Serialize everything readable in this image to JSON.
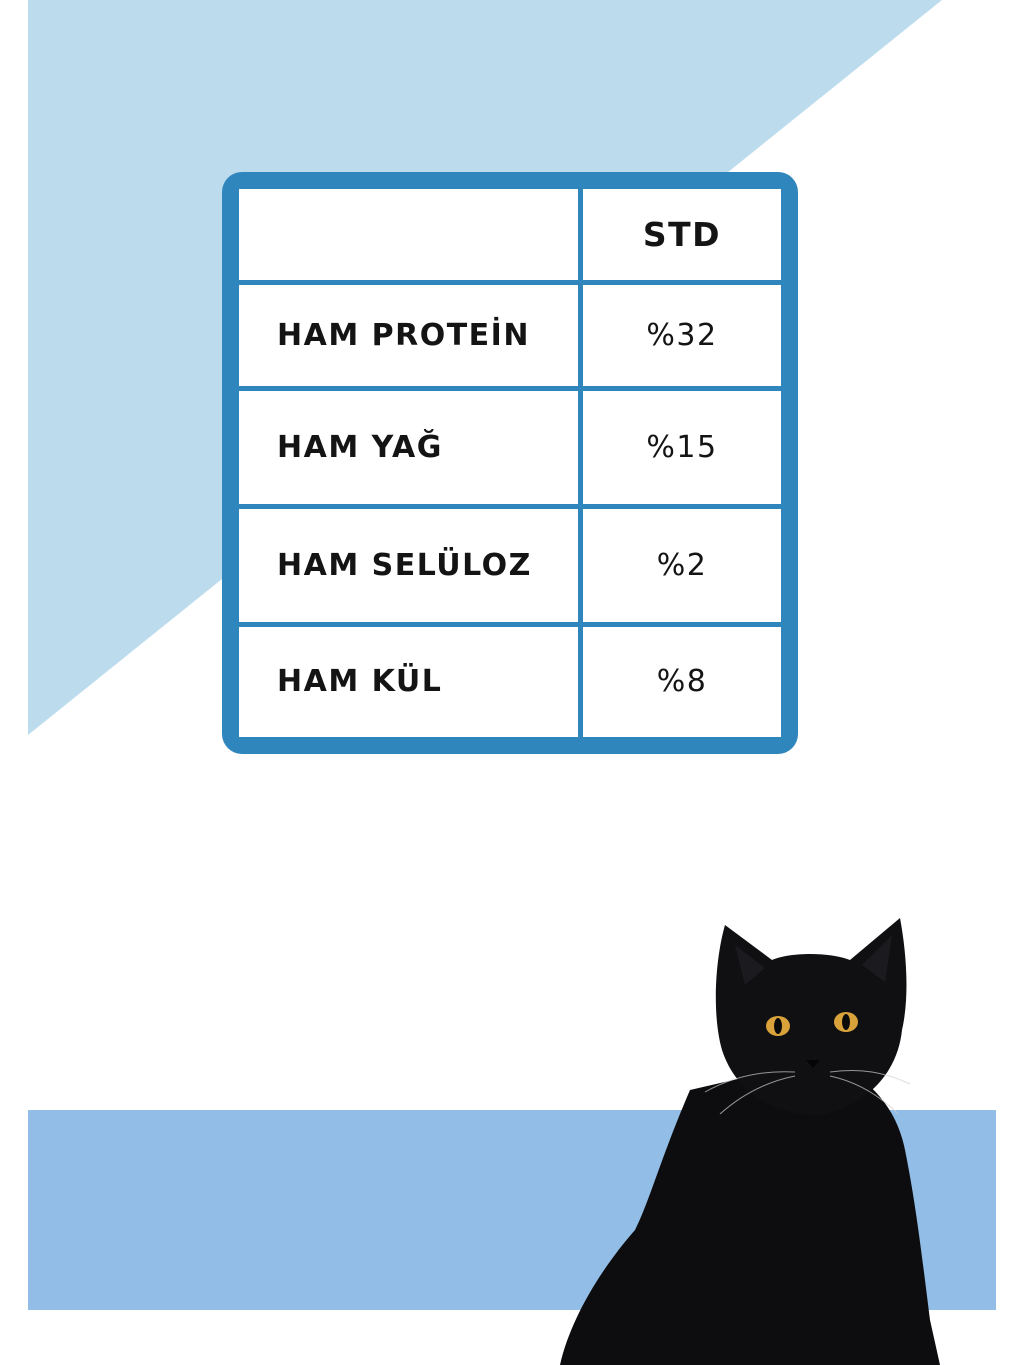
{
  "colors": {
    "triangle": "#bcdcee",
    "border": "#2f86bd",
    "band": "#92bde6",
    "cat_fur": "#0d0d0f",
    "cat_eye": "#d9a23a"
  },
  "table": {
    "header": {
      "label": "",
      "value": "STD"
    },
    "rows": [
      {
        "label": "HAM PROTEİN",
        "value": "%32"
      },
      {
        "label": "HAM YAĞ",
        "value": "%15"
      },
      {
        "label": "HAM SELÜLOZ",
        "value": "%2"
      },
      {
        "label": "HAM KÜL",
        "value": "%8"
      }
    ]
  },
  "image": {
    "subject": "black-cat"
  }
}
